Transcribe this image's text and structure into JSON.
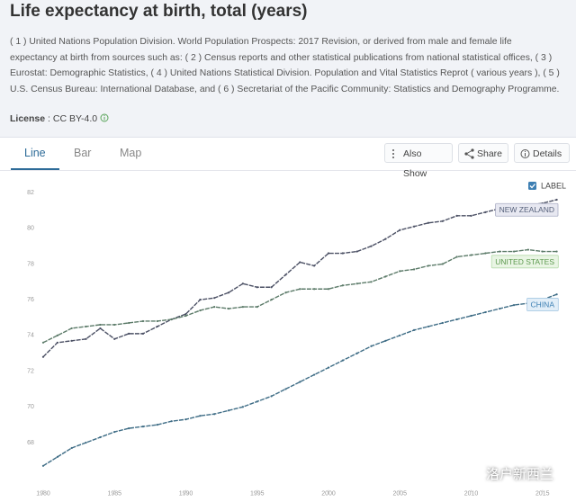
{
  "page": {
    "title": "Life expectancy at birth, total (years)",
    "description": "( 1 ) United Nations Population Division. World Population Prospects: 2017 Revision, or derived from male and female life expectancy at birth from sources such as: ( 2 ) Census reports and other statistical publications from national statistical offices, ( 3 ) Eurostat: Demographic Statistics, ( 4 ) United Nations Statistical Division. Population and Vital Statistics Reprot ( various years ), ( 5 ) U.S. Census Bureau: International Database, and ( 6 ) Secretariat of the Pacific Community: Statistics and Demography Programme.",
    "license": {
      "label": "License",
      "value": "CC BY-4.0"
    },
    "tabs": [
      "Line",
      "Bar",
      "Map"
    ],
    "buttons": [
      "Also Show",
      "Share",
      "Details"
    ],
    "watermark": "洛户新西兰"
  },
  "chart_data": {
    "type": "line",
    "x": [
      1980,
      1981,
      1982,
      1983,
      1984,
      1985,
      1986,
      1987,
      1988,
      1989,
      1990,
      1991,
      1992,
      1993,
      1994,
      1995,
      1996,
      1997,
      1998,
      1999,
      2000,
      2001,
      2002,
      2003,
      2004,
      2005,
      2006,
      2007,
      2008,
      2009,
      2010,
      2011,
      2012,
      2013,
      2014,
      2015,
      2016
    ],
    "xlim": [
      1980,
      2016
    ],
    "xticks": [
      1980,
      1985,
      1990,
      1995,
      2000,
      2005,
      2010,
      2015
    ],
    "ylim": [
      65.3,
      82.5
    ],
    "yticks": [
      68,
      70,
      72,
      74,
      76,
      78,
      80,
      82
    ],
    "grid": false,
    "label_toggle": "LABEL",
    "series": [
      {
        "name": "NEW ZEALAND",
        "color": "#4b5064",
        "label_color": "#55607a",
        "label_fill": "#e7e8f1",
        "label_border": "#a9adc4",
        "values": [
          72.8,
          73.6,
          73.7,
          73.8,
          74.4,
          73.8,
          74.1,
          74.1,
          74.5,
          74.9,
          75.2,
          76.0,
          76.1,
          76.4,
          76.9,
          76.7,
          76.7,
          77.4,
          78.1,
          77.9,
          78.6,
          78.6,
          78.7,
          79.0,
          79.4,
          79.9,
          80.1,
          80.3,
          80.4,
          80.7,
          80.7,
          80.9,
          81.1,
          81.2,
          81.3,
          81.4,
          81.6
        ]
      },
      {
        "name": "UNITED STATES",
        "color": "#5b7a68",
        "label_color": "#5d9a4f",
        "label_fill": "#e9f5e4",
        "label_border": "#b6dbaa",
        "values": [
          73.6,
          74.0,
          74.4,
          74.5,
          74.6,
          74.6,
          74.7,
          74.8,
          74.8,
          74.9,
          75.1,
          75.4,
          75.6,
          75.5,
          75.6,
          75.6,
          76.0,
          76.4,
          76.6,
          76.6,
          76.6,
          76.8,
          76.9,
          77.0,
          77.3,
          77.6,
          77.7,
          77.9,
          78.0,
          78.4,
          78.5,
          78.6,
          78.7,
          78.7,
          78.8,
          78.7,
          78.7
        ]
      },
      {
        "name": "CHINA",
        "color": "#3f6d86",
        "label_color": "#3d7fb3",
        "label_fill": "#e2eef8",
        "label_border": "#a8c9e4",
        "values": [
          66.7,
          67.2,
          67.7,
          68.0,
          68.3,
          68.6,
          68.8,
          68.9,
          69.0,
          69.2,
          69.3,
          69.5,
          69.6,
          69.8,
          70.0,
          70.3,
          70.6,
          71.0,
          71.4,
          71.8,
          72.2,
          72.6,
          73.0,
          73.4,
          73.7,
          74.0,
          74.3,
          74.5,
          74.7,
          74.9,
          75.1,
          75.3,
          75.5,
          75.7,
          75.8,
          76.0,
          76.3
        ]
      }
    ]
  }
}
